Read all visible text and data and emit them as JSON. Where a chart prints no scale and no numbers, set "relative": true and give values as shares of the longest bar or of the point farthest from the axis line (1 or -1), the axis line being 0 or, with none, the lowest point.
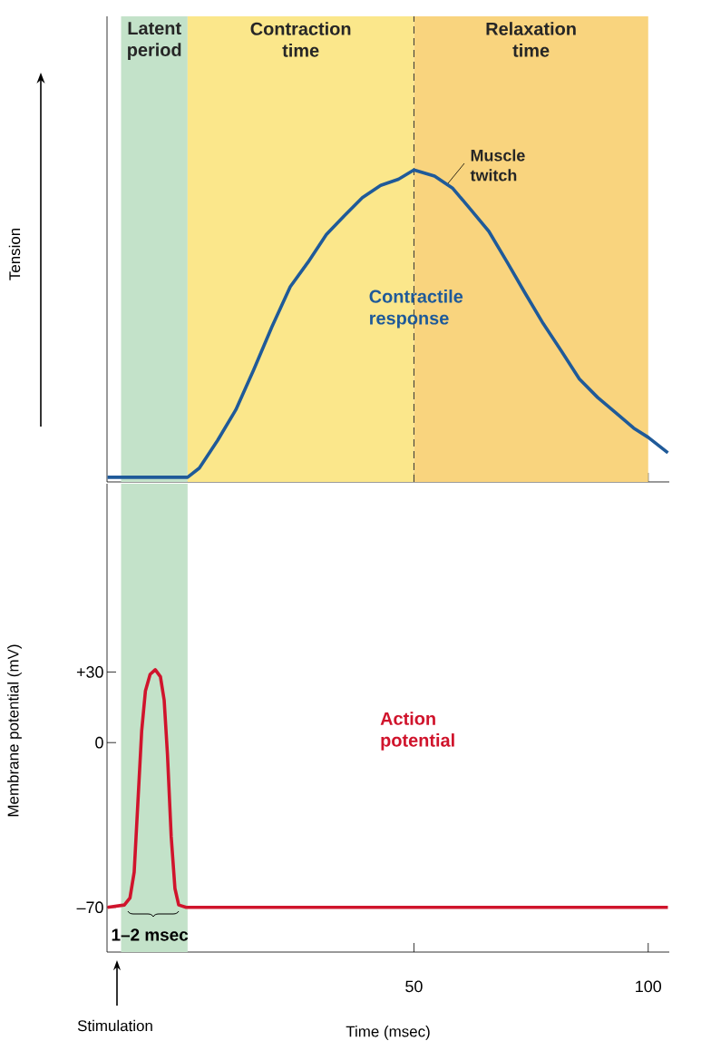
{
  "chart_data": [
    {
      "type": "line",
      "relative": true,
      "ylabel": "Tension",
      "xlim": [
        -15.5,
        104.5
      ],
      "xticks": [
        50,
        100
      ],
      "tick_labels": false,
      "series": [
        {
          "name": "Contractile response",
          "color": "#1f5a99",
          "x": [
            -15.4,
            1.7,
            4.2,
            8.1,
            12.0,
            15.8,
            19.7,
            23.6,
            27.4,
            31.3,
            35.1,
            39.0,
            42.9,
            46.7,
            50,
            54.4,
            58.3,
            62.2,
            66.0,
            69.9,
            73.7,
            77.6,
            81.5,
            85.3,
            89.2,
            93.1,
            96.9,
            100,
            104.2
          ],
          "values": [
            0,
            0,
            0.03,
            0.12,
            0.22,
            0.35,
            0.49,
            0.62,
            0.7,
            0.79,
            0.85,
            0.91,
            0.95,
            0.97,
            1,
            0.98,
            0.94,
            0.87,
            0.8,
            0.7,
            0.6,
            0.5,
            0.41,
            0.32,
            0.26,
            0.21,
            0.16,
            0.13,
            0.08
          ]
        }
      ],
      "bands": [
        {
          "axis": "x",
          "from": -12.5,
          "to": 1.7,
          "label": "Latent period",
          "color": "#c3e2c9"
        },
        {
          "axis": "x",
          "from": 1.7,
          "to": 50,
          "label": "Contraction time",
          "color": "#fbe78b"
        },
        {
          "axis": "x",
          "from": 50,
          "to": 100,
          "label": "Relaxation time",
          "color": "#f9d47e"
        }
      ],
      "ref_lines": [
        {
          "axis": "x",
          "value": 50,
          "line_style": "dashed",
          "color": "#333333"
        }
      ],
      "annotations": [
        "Muscle twitch"
      ]
    },
    {
      "type": "line",
      "xlabel": "Time (msec)",
      "ylabel": "Membrane potential (mV)",
      "xlim": [
        -15.5,
        104.5
      ],
      "ylim": [
        -89,
        110
      ],
      "xticks": [
        50,
        100
      ],
      "yticks": [
        {
          "value": 30,
          "label": "+30"
        },
        0,
        {
          "value": -70,
          "label": "–70"
        }
      ],
      "series": [
        {
          "name": "Action potential",
          "color": "#d0142c",
          "x": [
            -15.4,
            -11.8,
            -10.6,
            -9.7,
            -8.9,
            -8.1,
            -7.3,
            -6.3,
            -5.2,
            -4.1,
            -3.3,
            -2.6,
            -1.8,
            -1.0,
            -0.2,
            1.4,
            104.2
          ],
          "values": [
            -70,
            -69,
            -66,
            -55,
            -25,
            5,
            22,
            29,
            31,
            28,
            18,
            -5,
            -40,
            -62,
            -69,
            -70,
            -70
          ]
        }
      ],
      "bands": [
        {
          "axis": "x",
          "from": -12.5,
          "to": 1.7,
          "color": "#c3e2c9"
        }
      ],
      "annotations": [
        "1–2 msec",
        "Stimulation"
      ]
    }
  ]
}
